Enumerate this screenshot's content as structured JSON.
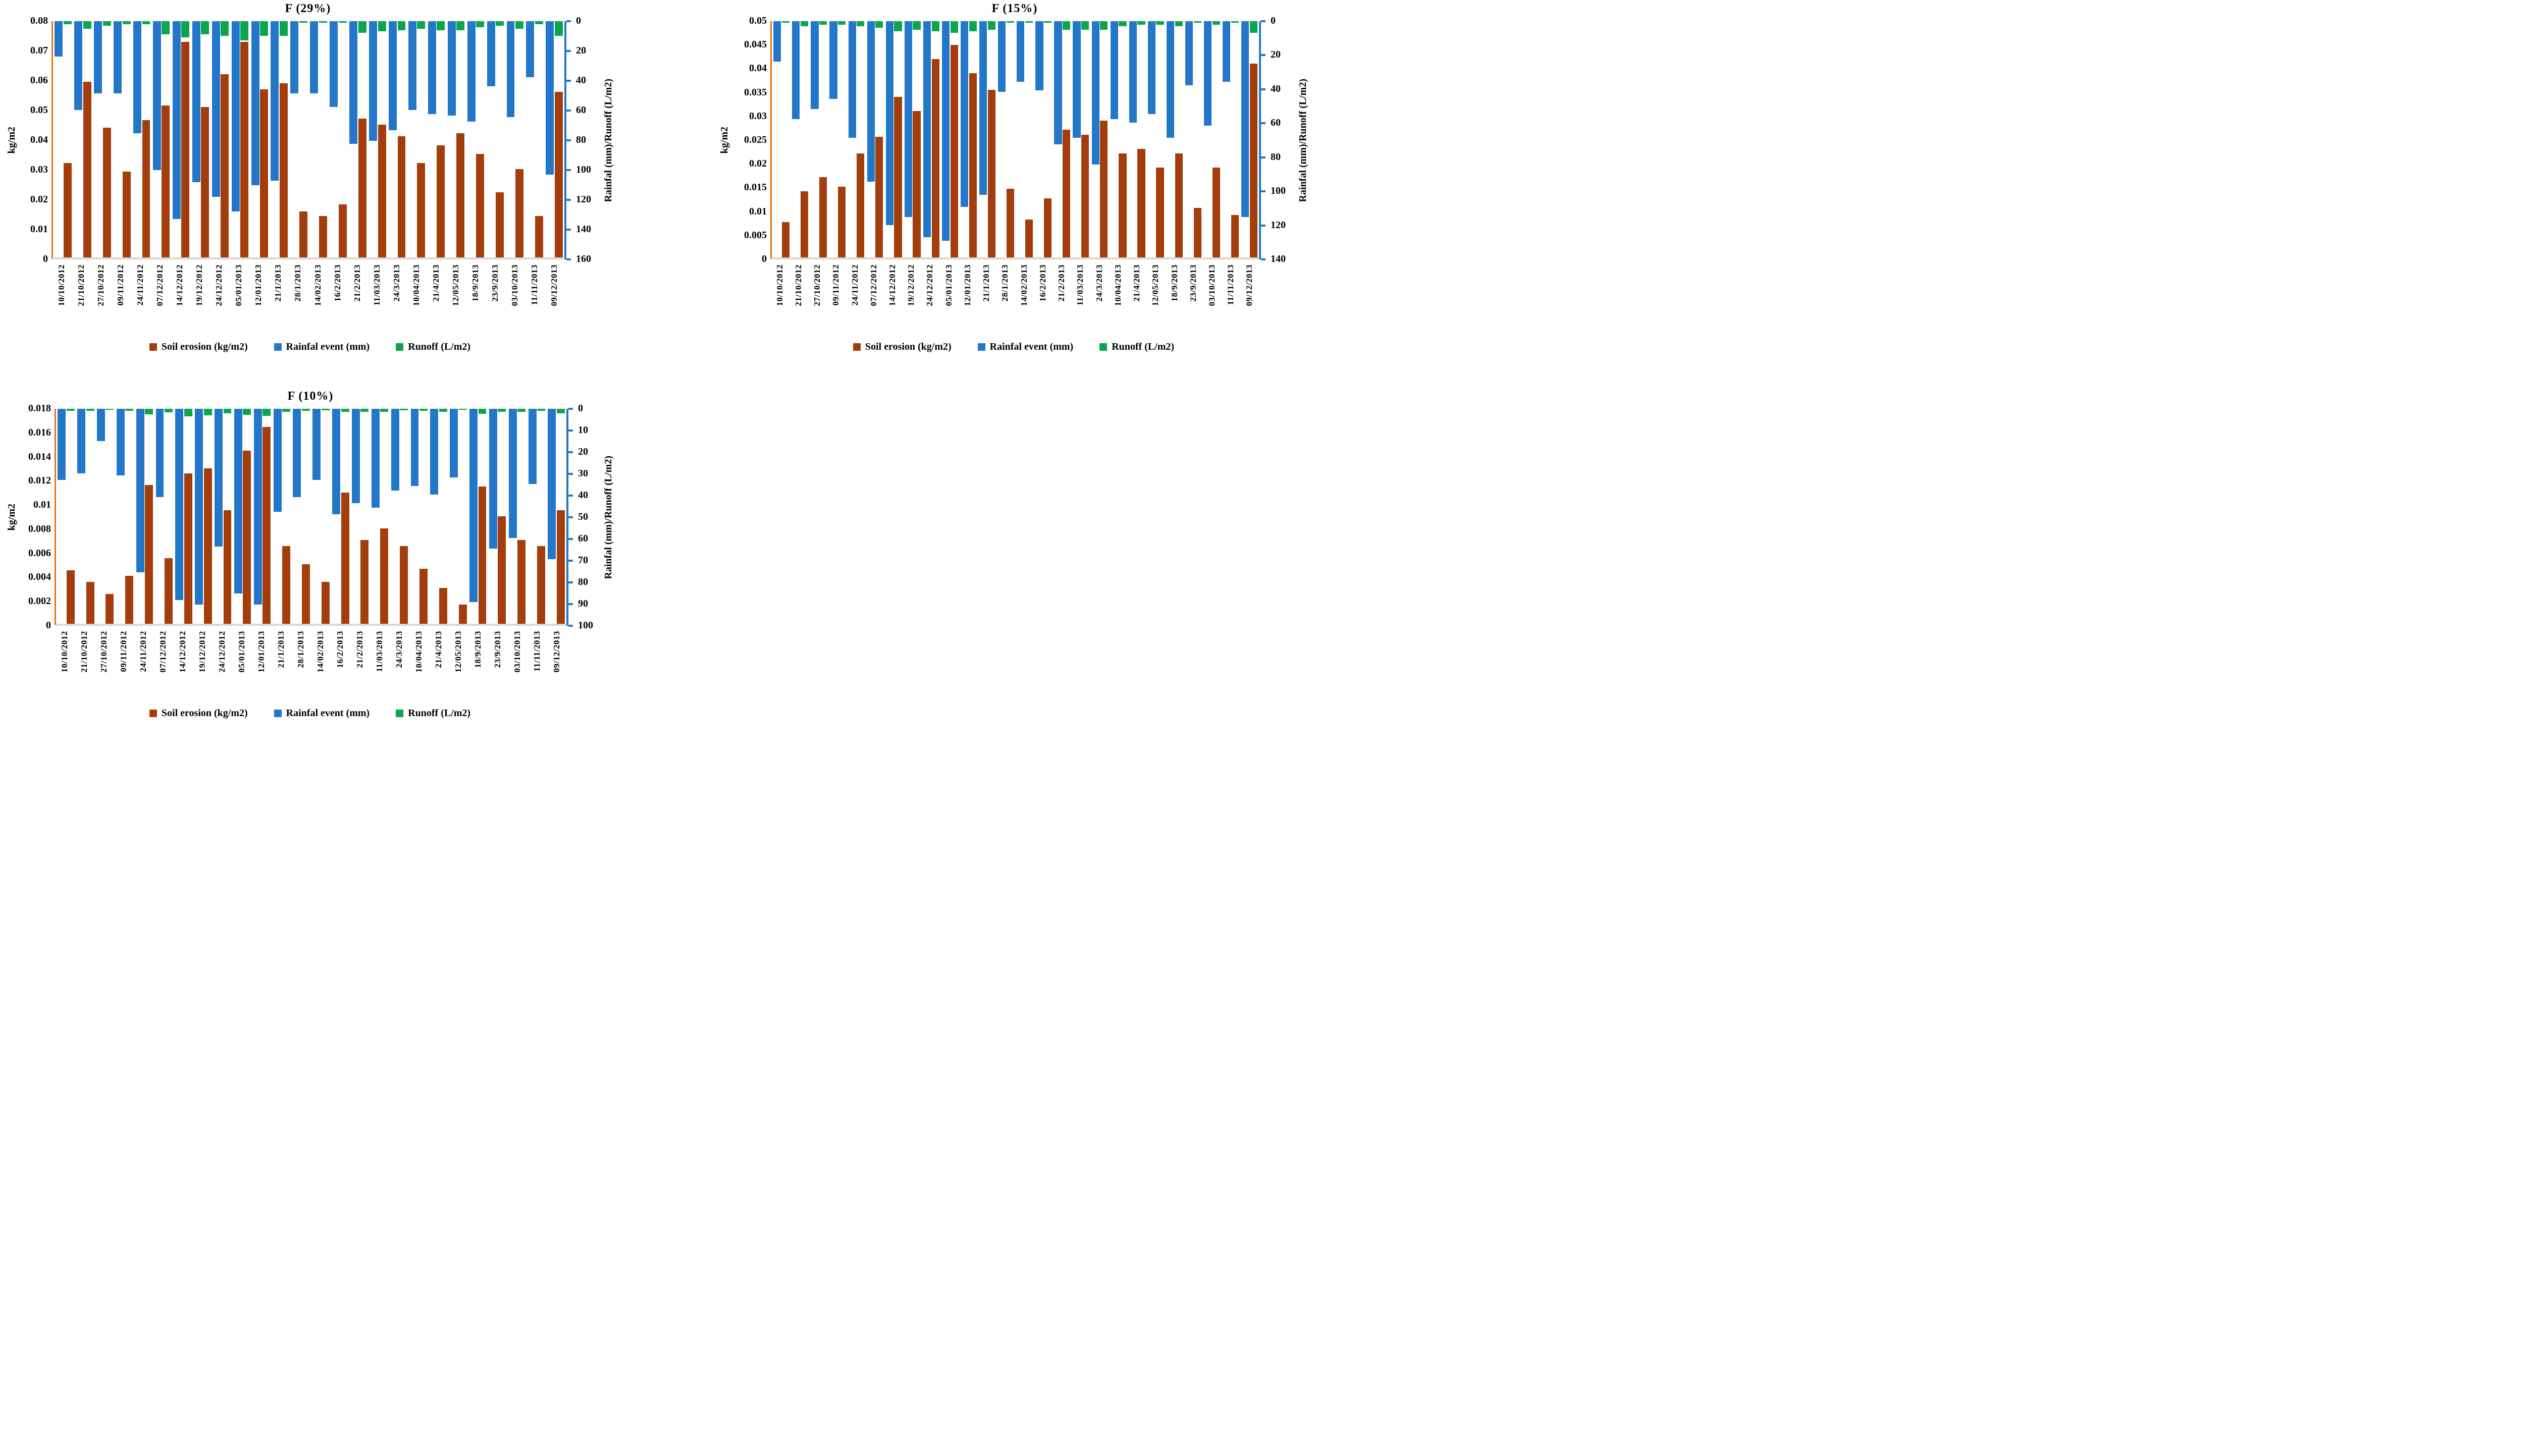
{
  "colors": {
    "erosion": "#A33D0C",
    "rainfall": "#2277C8",
    "runoff": "#0AA54D",
    "left_axis_line": "#E8700A",
    "baseline": "#D8D8D6",
    "text": "#000000"
  },
  "legend": {
    "items": [
      {
        "label": "Soil erosion (kg/m2)",
        "color_key": "erosion"
      },
      {
        "label": "Rainfal event (mm)",
        "color_key": "rainfall"
      },
      {
        "label": "Runoff (L/m2)",
        "color_key": "runoff"
      }
    ]
  },
  "chart_data": [
    {
      "type": "bar",
      "title": "F (29%)",
      "ylabel_left": "kg/m2",
      "ylabel_right": "Rainfal (mm)/Runoff (L/m2)",
      "left_axis": {
        "min": 0,
        "max": 0.08,
        "ticks": [
          "0.08",
          "0.07",
          "0.06",
          "0.05",
          "0.04",
          "0.03",
          "0.02",
          "0.01",
          "0"
        ]
      },
      "right_axis": {
        "min": 0,
        "max": 160,
        "inverted": true,
        "ticks": [
          "0",
          "20",
          "40",
          "60",
          "80",
          "100",
          "120",
          "140",
          "160"
        ]
      },
      "grid": false,
      "legend_position": "bottom",
      "categories": [
        "10/10/2012",
        "21/10/2012",
        "27/10/2012",
        "09/11/2012",
        "24/11/2012",
        "07/12/2012",
        "14/12/2012",
        "19/12/2012",
        "24/12/2012",
        "05/01/2013",
        "12/01/2013",
        "21/1/2013",
        "28/1/2013",
        "14/02/2013",
        "16/2/2013",
        "21/2/2013",
        "11/03/2013",
        "24/3/2013",
        "10/04/2013",
        "21/4/2013",
        "12/05/2013",
        "18/9/2013",
        "23/9/2013",
        "03/10/2013",
        "11/11/2013",
        "09/12/2013"
      ],
      "series": [
        {
          "name": "Soil erosion (kg/m2)",
          "axis": "left",
          "direction": "up",
          "values": [
            0.032,
            0.0595,
            0.044,
            0.029,
            0.0465,
            0.0515,
            0.073,
            0.051,
            0.062,
            0.073,
            0.057,
            0.059,
            0.0155,
            0.014,
            0.018,
            0.047,
            0.045,
            0.041,
            0.032,
            0.038,
            0.042,
            0.035,
            0.022,
            0.03,
            0.014,
            0.056
          ]
        },
        {
          "name": "Rainfal event (mm)",
          "axis": "right",
          "direction": "down",
          "values": [
            24,
            60,
            49,
            49,
            76,
            101,
            134,
            109,
            119,
            129,
            111,
            108,
            49,
            49,
            58,
            83,
            81,
            74,
            60,
            63,
            64,
            68,
            44,
            65,
            38,
            104
          ]
        },
        {
          "name": "Runoff (L/m2)",
          "axis": "right",
          "direction": "down",
          "values": [
            2,
            5,
            3,
            2,
            2,
            9,
            11,
            9,
            10,
            13,
            10,
            10,
            1,
            1,
            1,
            8,
            7,
            6,
            5,
            6,
            6,
            4,
            3,
            5,
            2,
            10
          ]
        }
      ]
    },
    {
      "type": "bar",
      "title": "F (15%)",
      "ylabel_left": "kg/m2",
      "ylabel_right": "Rainfal (mm)/Runoff (L/m2)",
      "left_axis": {
        "min": 0,
        "max": 0.05,
        "ticks": [
          "0.05",
          "0.045",
          "0.04",
          "0.035",
          "0.03",
          "0.025",
          "0.02",
          "0.015",
          "0.01",
          "0.005",
          "0"
        ]
      },
      "right_axis": {
        "min": 0,
        "max": 140,
        "inverted": true,
        "ticks": [
          "0",
          "20",
          "40",
          "60",
          "80",
          "100",
          "120",
          "140"
        ]
      },
      "grid": false,
      "legend_position": "bottom",
      "categories": [
        "10/10/2012",
        "21/10/2012",
        "27/10/2012",
        "09/11/2012",
        "24/11/2012",
        "07/12/2012",
        "14/12/2012",
        "19/12/2012",
        "24/12/2012",
        "05/01/2013",
        "12/01/2013",
        "21/1/2013",
        "28/1/2013",
        "14/02/2013",
        "16/2/2013",
        "21/2/2013",
        "11/03/2013",
        "24/3/2013",
        "10/04/2013",
        "21/4/2013",
        "12/05/2013",
        "18/9/2013",
        "23/9/2013",
        "03/10/2013",
        "11/11/2013",
        "09/12/2013"
      ],
      "series": [
        {
          "name": "Soil erosion (kg/m2)",
          "axis": "left",
          "direction": "up",
          "values": [
            0.0075,
            0.014,
            0.017,
            0.015,
            0.022,
            0.0255,
            0.034,
            0.031,
            0.042,
            0.045,
            0.039,
            0.0355,
            0.0145,
            0.008,
            0.0125,
            0.027,
            0.026,
            0.029,
            0.022,
            0.023,
            0.019,
            0.022,
            0.0105,
            0.019,
            0.009,
            0.041
          ]
        },
        {
          "name": "Rainfal event (mm)",
          "axis": "right",
          "direction": "down",
          "values": [
            24,
            58,
            52,
            46,
            69,
            95,
            121,
            116,
            128,
            130,
            110,
            103,
            42,
            36,
            41,
            73,
            69,
            85,
            58,
            60,
            55,
            69,
            38,
            62,
            36,
            116
          ]
        },
        {
          "name": "Runoff (L/m2)",
          "axis": "right",
          "direction": "down",
          "values": [
            1,
            3,
            2,
            2,
            3,
            4,
            6,
            5,
            6,
            7,
            6,
            5,
            1,
            1,
            1,
            5,
            5,
            5,
            3,
            2,
            2,
            3,
            1,
            2,
            1,
            7
          ]
        }
      ]
    },
    {
      "type": "bar",
      "title": "F (10%)",
      "ylabel_left": "kg/m2",
      "ylabel_right": "Rainfal (mm)/Runoff (L/m2)",
      "left_axis": {
        "min": 0,
        "max": 0.018,
        "ticks": [
          "0.018",
          "0.016",
          "0.014",
          "0.012",
          "0.01",
          "0.008",
          "0.006",
          "0.004",
          "0.002",
          "0"
        ]
      },
      "right_axis": {
        "min": 0,
        "max": 100,
        "inverted": true,
        "ticks": [
          "0",
          "10",
          "20",
          "30",
          "40",
          "50",
          "60",
          "70",
          "80",
          "90",
          "100"
        ]
      },
      "grid": false,
      "legend_position": "bottom",
      "categories": [
        "10/10/2012",
        "21/10/2012",
        "27/10/2012",
        "09/11/2012",
        "24/11/2012",
        "07/12/2012",
        "14/12/2012",
        "19/12/2012",
        "24/12/2012",
        "05/01/2013",
        "12/01/2013",
        "21/1/2013",
        "28/1/2013",
        "14/02/2013",
        "16/2/2013",
        "21/2/2013",
        "11/03/2013",
        "24/3/2013",
        "10/04/2013",
        "21/4/2013",
        "12/05/2013",
        "18/9/2013",
        "23/9/2013",
        "03/10/2013",
        "11/11/2013",
        "09/12/2013"
      ],
      "series": [
        {
          "name": "Soil erosion (kg/m2)",
          "axis": "left",
          "direction": "up",
          "values": [
            0.0045,
            0.0035,
            0.0025,
            0.004,
            0.0116,
            0.0055,
            0.0126,
            0.013,
            0.0095,
            0.0145,
            0.0165,
            0.0065,
            0.005,
            0.0035,
            0.011,
            0.007,
            0.008,
            0.0065,
            0.0046,
            0.003,
            0.0016,
            0.0115,
            0.009,
            0.007,
            0.0065,
            0.0095
          ]
        },
        {
          "name": "Rainfal event (mm)",
          "axis": "right",
          "direction": "down",
          "values": [
            33,
            30,
            15,
            31,
            76,
            41,
            89,
            91,
            64,
            86,
            91,
            48,
            41,
            33,
            49,
            44,
            46,
            38,
            36,
            40,
            32,
            90,
            65,
            60,
            35,
            70
          ]
        },
        {
          "name": "Runoff (L/m2)",
          "axis": "right",
          "direction": "down",
          "values": [
            1,
            1,
            0.5,
            1,
            2.5,
            1.6,
            3.6,
            3,
            2,
            2.7,
            3.3,
            1.4,
            1,
            0.7,
            1.4,
            1.5,
            1.3,
            0.7,
            1,
            1.3,
            0.5,
            2.3,
            1.3,
            1.3,
            1,
            2
          ]
        }
      ]
    }
  ]
}
